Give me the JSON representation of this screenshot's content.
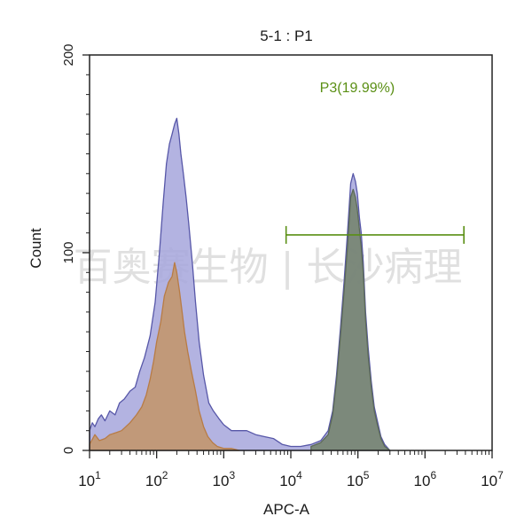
{
  "chart_data": {
    "type": "histogram",
    "title": "5-1 : P1",
    "xlabel": "APC-A",
    "ylabel": "Count",
    "x_scale": "log10",
    "xlim": [
      10,
      10000000
    ],
    "ylim": [
      0,
      200
    ],
    "x_ticks": [
      {
        "value": 10,
        "base": "10",
        "exp": "1"
      },
      {
        "value": 100,
        "base": "10",
        "exp": "2"
      },
      {
        "value": 1000,
        "base": "10",
        "exp": "3"
      },
      {
        "value": 10000,
        "base": "10",
        "exp": "4"
      },
      {
        "value": 100000,
        "base": "10",
        "exp": "5"
      },
      {
        "value": 1000000,
        "base": "10",
        "exp": "6"
      },
      {
        "value": 10000000,
        "base": "10",
        "exp": "7"
      }
    ],
    "y_ticks": [
      {
        "value": 0,
        "label": "0"
      },
      {
        "value": 100,
        "label": "100"
      },
      {
        "value": 200,
        "label": "200"
      }
    ],
    "gate": {
      "label": "P3(19.99%)",
      "x_start": 8500,
      "x_end": 3800000,
      "y": 109,
      "color": "#5a8f14"
    },
    "watermark": "百奥赛生物 | 长沙病理",
    "series": [
      {
        "fill": "#a6a6dc",
        "line": "#5757a8",
        "x": [
          10,
          11,
          12,
          13.5,
          15,
          17,
          20,
          24,
          28,
          33,
          40,
          48,
          56,
          66,
          80,
          95,
          110,
          125,
          140,
          155,
          170,
          185,
          200,
          215,
          230,
          250,
          275,
          300,
          340,
          380,
          430,
          500,
          600,
          700,
          850,
          1000,
          1300,
          1700,
          2200,
          3000,
          4000,
          5500,
          7500,
          10000,
          14000,
          20000,
          28000,
          36000,
          42000,
          48000,
          55000,
          62000,
          70000,
          78000,
          85000,
          92000,
          98000,
          105000,
          112000,
          120000,
          130000,
          142000,
          158000,
          175000,
          195000,
          220000,
          250000,
          300000
        ],
        "y": [
          10,
          14,
          12,
          16,
          18,
          15,
          20,
          18,
          24,
          26,
          30,
          32,
          40,
          47,
          58,
          75,
          100,
          125,
          145,
          155,
          160,
          165,
          168,
          160,
          150,
          140,
          128,
          115,
          95,
          75,
          55,
          38,
          24,
          20,
          16,
          13,
          10,
          10,
          10,
          8,
          7,
          6,
          3,
          2,
          2,
          3,
          5,
          10,
          20,
          38,
          62,
          85,
          110,
          135,
          140,
          136,
          130,
          118,
          110,
          95,
          70,
          52,
          35,
          22,
          15,
          7,
          3,
          0
        ]
      },
      {
        "fill": "#c2966e",
        "line": "#b87c45",
        "x": [
          10,
          12,
          14,
          17,
          20,
          25,
          30,
          40,
          50,
          60,
          70,
          80,
          90,
          100,
          115,
          130,
          150,
          170,
          185,
          200,
          220,
          240,
          260,
          290,
          330,
          380,
          430,
          500,
          580,
          680,
          800,
          1000,
          1300,
          1700
        ],
        "y": [
          3,
          8,
          5,
          6,
          8,
          9,
          10,
          14,
          18,
          22,
          28,
          36,
          45,
          55,
          65,
          78,
          85,
          88,
          95,
          90,
          80,
          70,
          60,
          50,
          40,
          30,
          20,
          12,
          7,
          4,
          2,
          1,
          1,
          0
        ]
      },
      {
        "fill": "#758470",
        "line": "#5c6a58",
        "x": [
          20000,
          28000,
          36000,
          42000,
          48000,
          55000,
          62000,
          70000,
          78000,
          85000,
          92000,
          98000,
          105000,
          112000,
          120000,
          130000,
          142000,
          158000,
          175000,
          195000,
          220000,
          250000,
          300000
        ],
        "y": [
          2,
          4,
          8,
          18,
          35,
          58,
          80,
          103,
          128,
          132,
          128,
          122,
          112,
          103,
          90,
          66,
          48,
          32,
          20,
          13,
          6,
          2,
          0
        ]
      }
    ]
  }
}
